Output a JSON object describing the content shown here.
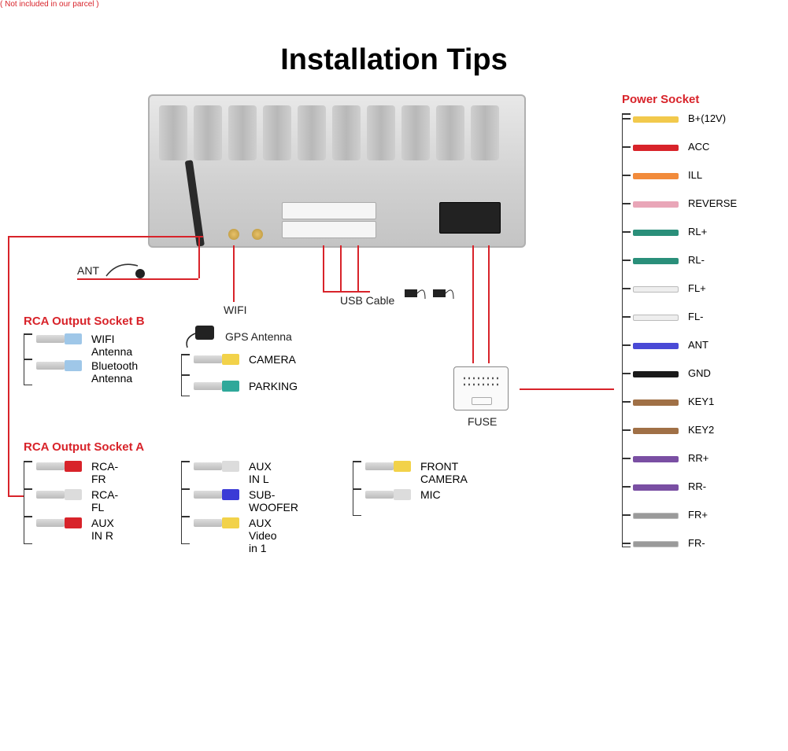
{
  "title": "Installation Tips",
  "colors": {
    "accent": "#d8232a",
    "bg": "#ffffff",
    "chassis": "#d0d0d0",
    "text": "#222222"
  },
  "callouts": {
    "ant": "ANT",
    "ant_note": "( Not included in our parcel )",
    "wifi": "WIFI",
    "usb": "USB Cable",
    "gps": "GPS Antenna",
    "camera": "CAMERA",
    "parking": "PARKING",
    "fuse": "FUSE"
  },
  "sections": {
    "rca_b": {
      "title": "RCA Output Socket B",
      "items": [
        {
          "label": "WIFI Antenna",
          "color": "#9fc7e8"
        },
        {
          "label": "Bluetooth Antenna",
          "color": "#9fc7e8"
        }
      ]
    },
    "rca_a": {
      "title": "RCA Output Socket A",
      "cols": [
        [
          {
            "label": "RCA-FR",
            "color": "#d8232a"
          },
          {
            "label": "RCA-FL",
            "color": "#dcdcdc"
          },
          {
            "label": "AUX IN R",
            "color": "#d8232a"
          }
        ],
        [
          {
            "label": "AUX IN L",
            "color": "#dcdcdc"
          },
          {
            "label": "SUB-WOOFER",
            "color": "#3b3bd6"
          },
          {
            "label": "AUX Video in 1",
            "color": "#f2d24a"
          }
        ],
        [
          {
            "label": "FRONT CAMERA",
            "color": "#f2d24a"
          },
          {
            "label": "MIC",
            "color": "#dcdcdc"
          }
        ]
      ]
    },
    "camera_group": [
      {
        "label": "CAMERA",
        "color": "#f2d24a"
      },
      {
        "label": "PARKING",
        "color": "#2fa89a"
      }
    ],
    "power": {
      "title": "Power Socket",
      "wires": [
        {
          "label": "B+(12V)",
          "color": "#f2c94c"
        },
        {
          "label": "ACC",
          "color": "#d8232a"
        },
        {
          "label": "ILL",
          "color": "#f28b3b"
        },
        {
          "label": "REVERSE",
          "color": "#e9a6b8"
        },
        {
          "label": "RL+",
          "color": "#2a8f7a"
        },
        {
          "label": "RL-",
          "color": "#2a8f7a"
        },
        {
          "label": "FL+",
          "color": "#eeeeee"
        },
        {
          "label": "FL-",
          "color": "#eeeeee"
        },
        {
          "label": "ANT",
          "color": "#4a4ad6"
        },
        {
          "label": "GND",
          "color": "#1a1a1a"
        },
        {
          "label": "KEY1",
          "color": "#a07046"
        },
        {
          "label": "KEY2",
          "color": "#a07046"
        },
        {
          "label": "RR+",
          "color": "#7a4fa3"
        },
        {
          "label": "RR-",
          "color": "#7a4fa3"
        },
        {
          "label": "FR+",
          "color": "#9a9a9a"
        },
        {
          "label": "FR-",
          "color": "#9a9a9a"
        }
      ]
    }
  },
  "style": {
    "title_fontsize": 38,
    "label_fontsize": 14,
    "header_fontsize": 15,
    "wire_swatch_w": 58,
    "wire_swatch_h": 8
  }
}
